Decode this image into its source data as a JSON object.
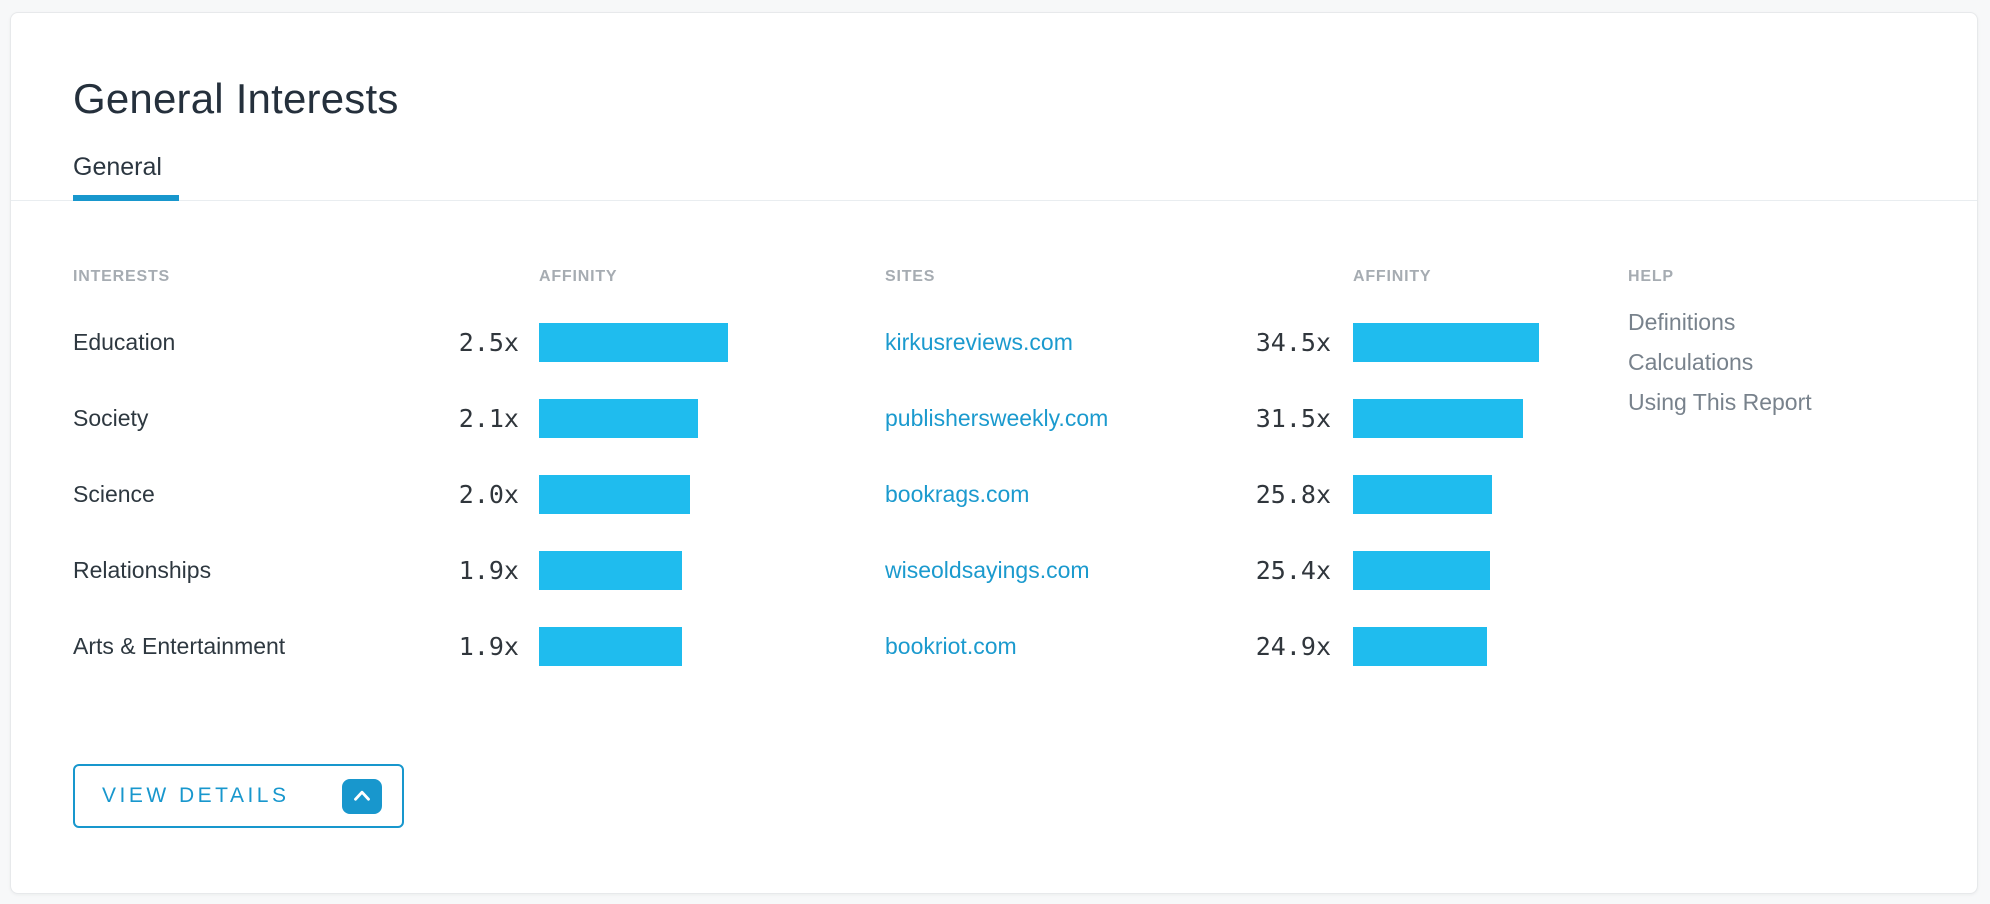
{
  "card": {
    "title": "General Interests",
    "tab": {
      "label": "General",
      "active": true
    }
  },
  "headers": {
    "interests": "INTERESTS",
    "affinity_interests": "AFFINITY",
    "sites": "SITES",
    "affinity_sites": "AFFINITY",
    "help": "HELP"
  },
  "interests": [
    {
      "label": "Education",
      "affinity": "2.5x",
      "value": 2.5
    },
    {
      "label": "Society",
      "affinity": "2.1x",
      "value": 2.1
    },
    {
      "label": "Science",
      "affinity": "2.0x",
      "value": 2.0
    },
    {
      "label": "Relationships",
      "affinity": "1.9x",
      "value": 1.9
    },
    {
      "label": "Arts & Entertainment",
      "affinity": "1.9x",
      "value": 1.9
    }
  ],
  "sites": [
    {
      "label": "kirkusreviews.com",
      "affinity": "34.5x",
      "value": 34.5
    },
    {
      "label": "publishersweekly.com",
      "affinity": "31.5x",
      "value": 31.5
    },
    {
      "label": "bookrags.com",
      "affinity": "25.8x",
      "value": 25.8
    },
    {
      "label": "wiseoldsayings.com",
      "affinity": "25.4x",
      "value": 25.4
    },
    {
      "label": "bookriot.com",
      "affinity": "24.9x",
      "value": 24.9
    }
  ],
  "help": {
    "links": [
      {
        "label": "Definitions"
      },
      {
        "label": "Calculations"
      },
      {
        "label": "Using This Report"
      }
    ]
  },
  "actions": {
    "view_details": "VIEW DETAILS"
  },
  "colors": {
    "bar": "#1fbcee",
    "accent": "#1897cd",
    "link": "#1b9ace"
  },
  "chart_data": [
    {
      "type": "bar",
      "title": "Interests affinity",
      "categories": [
        "Education",
        "Society",
        "Science",
        "Relationships",
        "Arts & Entertainment"
      ],
      "values": [
        2.5,
        2.1,
        2.0,
        1.9,
        1.9
      ],
      "unit": "x",
      "orientation": "horizontal"
    },
    {
      "type": "bar",
      "title": "Sites affinity",
      "categories": [
        "kirkusreviews.com",
        "publishersweekly.com",
        "bookrags.com",
        "wiseoldsayings.com",
        "bookriot.com"
      ],
      "values": [
        34.5,
        31.5,
        25.8,
        25.4,
        24.9
      ],
      "unit": "x",
      "orientation": "horizontal"
    }
  ]
}
